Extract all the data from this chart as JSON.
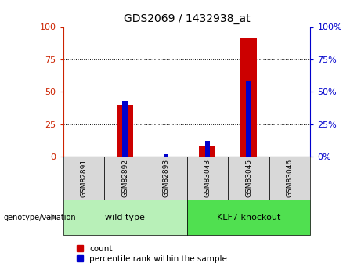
{
  "title": "GDS2069 / 1432938_at",
  "samples": [
    "GSM82891",
    "GSM82892",
    "GSM82893",
    "GSM83043",
    "GSM83045",
    "GSM83046"
  ],
  "count_values": [
    0,
    40,
    0,
    8,
    92,
    0
  ],
  "percentile_values": [
    0,
    43,
    2,
    12,
    58,
    0
  ],
  "groups": [
    {
      "label": "wild type",
      "start": 0,
      "end": 3,
      "color": "#b8f0b8"
    },
    {
      "label": "KLF7 knockout",
      "start": 3,
      "end": 6,
      "color": "#50e050"
    }
  ],
  "group_label": "genotype/variation",
  "ylim": [
    0,
    100
  ],
  "yticks": [
    0,
    25,
    50,
    75,
    100
  ],
  "bar_color": "#cc0000",
  "percentile_color": "#0000cc",
  "tick_label_color_left": "#cc2200",
  "tick_label_color_right": "#0000cc",
  "bar_width": 0.4,
  "percentile_bar_width": 0.12,
  "legend_count_label": "count",
  "legend_percentile_label": "percentile rank within the sample"
}
